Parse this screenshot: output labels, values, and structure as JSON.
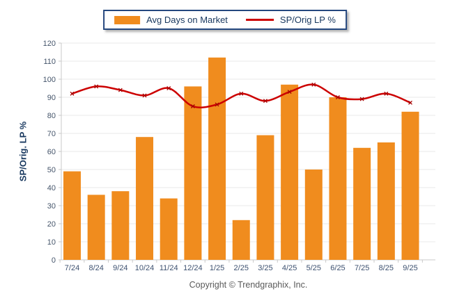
{
  "legend": {
    "items": [
      {
        "label": "Avg Days on Market",
        "type": "bar",
        "color": "#F08C1E"
      },
      {
        "label": "SP/Orig LP %",
        "type": "line",
        "color": "#CC0000"
      }
    ]
  },
  "y_axis_title": "SP/Orig. LP %",
  "footer": {
    "copyright": "Copyright © Trendgraphix, Inc."
  },
  "colors": {
    "bar": "#F08C1E",
    "line": "#CC0000",
    "line_marker": "#A50000",
    "legend_border": "#24477E",
    "gridline": "#E8E8E8",
    "axis": "#C9C9C9",
    "tick_text": "#44546A",
    "title_text": "#17375E"
  },
  "chart_data": {
    "type": "bar",
    "categories": [
      "7/24",
      "8/24",
      "9/24",
      "10/24",
      "11/24",
      "12/24",
      "1/25",
      "2/25",
      "3/25",
      "4/25",
      "5/25",
      "6/25",
      "7/25",
      "8/25",
      "9/25"
    ],
    "series": [
      {
        "name": "Avg Days on Market",
        "type": "bar",
        "color": "#F08C1E",
        "values": [
          49,
          36,
          38,
          68,
          34,
          96,
          112,
          22,
          69,
          97,
          50,
          90,
          62,
          65,
          82
        ]
      },
      {
        "name": "SP/Orig LP %",
        "type": "line",
        "color": "#CC0000",
        "values": [
          92,
          96,
          94,
          91,
          95,
          85,
          86,
          92,
          88,
          93,
          97,
          90,
          89,
          92,
          87
        ]
      }
    ],
    "title": "",
    "xlabel": "",
    "ylabel": "SP/Orig. LP %",
    "ylim": [
      0,
      120
    ],
    "yticks": [
      0,
      10,
      20,
      30,
      40,
      50,
      60,
      70,
      80,
      90,
      100,
      110,
      120
    ],
    "grid": true,
    "legend_position": "top"
  }
}
